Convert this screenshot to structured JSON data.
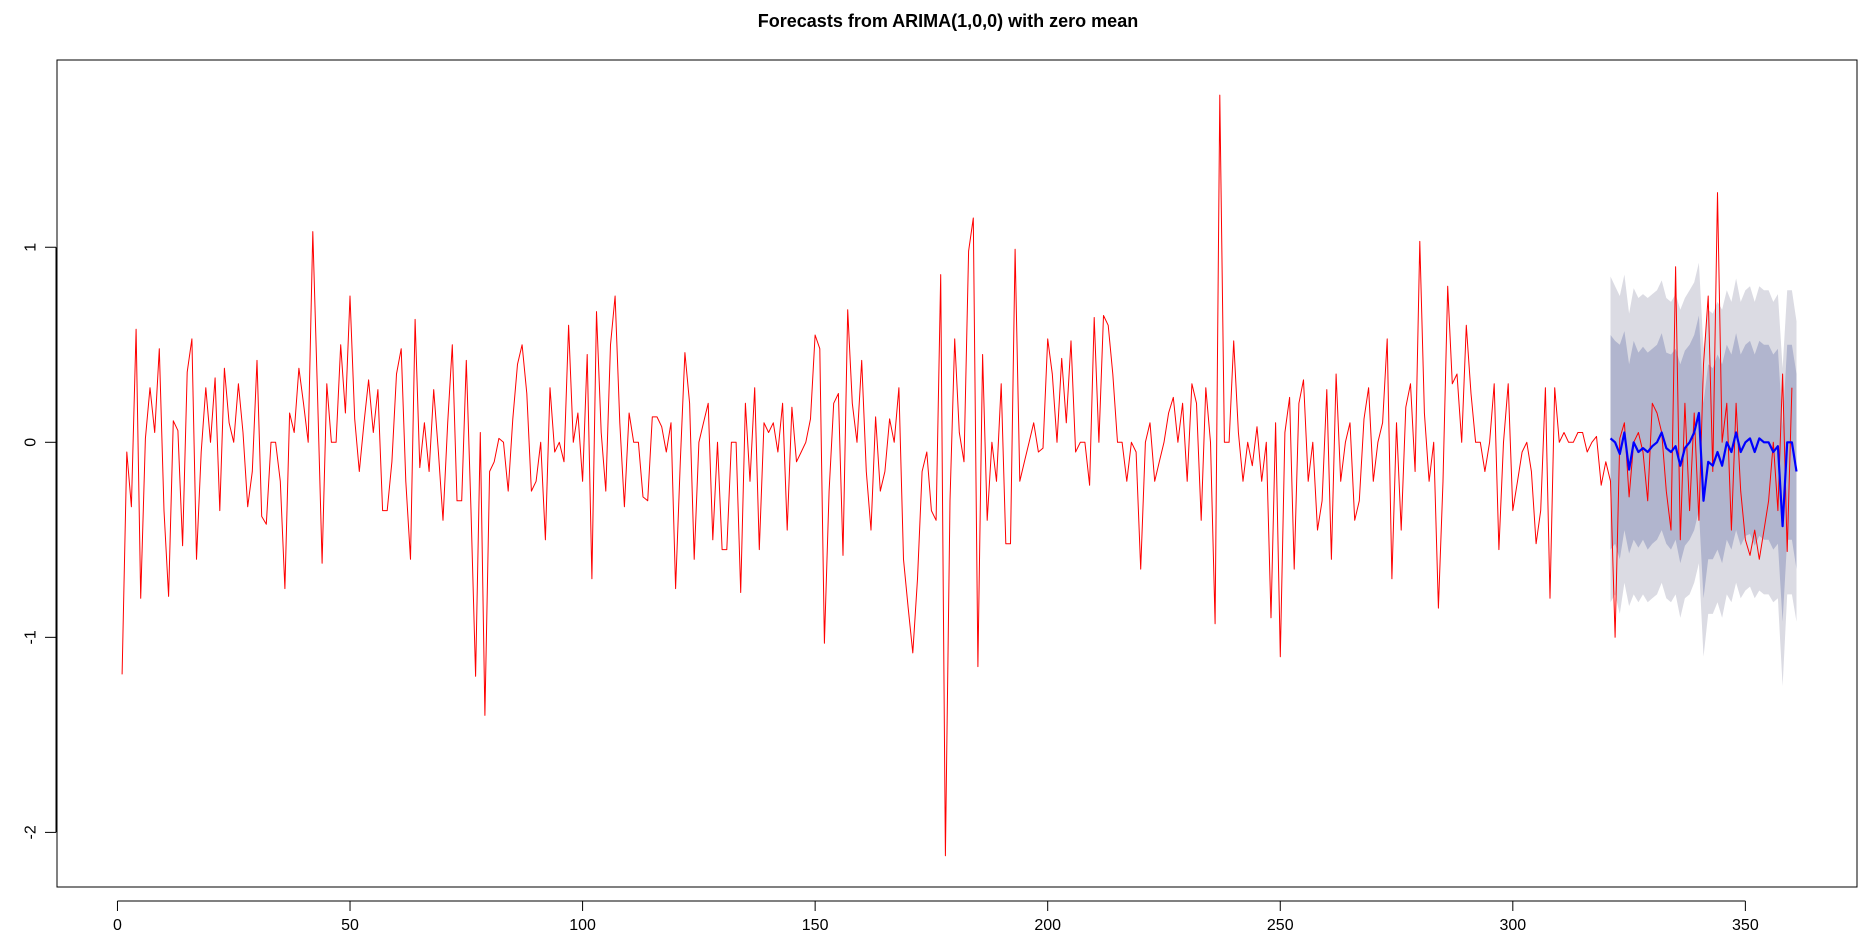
{
  "chart_data": {
    "type": "line",
    "title": "Forecasts from ARIMA(1,0,0) with zero mean",
    "xlabel": "",
    "ylabel": "",
    "xlim": [
      -13,
      374
    ],
    "ylim": [
      -2.28,
      1.96
    ],
    "x_ticks": [
      0,
      50,
      100,
      150,
      200,
      250,
      300,
      350
    ],
    "y_ticks": [
      -2,
      -1,
      0,
      1
    ],
    "grid": false,
    "legend": "none",
    "colors": {
      "series": "#ff0000",
      "forecast": "#0000ff",
      "band80": "#b1b5ce",
      "band95": "#dbdbe3"
    },
    "series": [
      {
        "name": "",
        "color": "#ff0000",
        "x_start": 1,
        "values": [
          -1.19,
          -0.05,
          -0.33,
          0.58,
          -0.8,
          0.02,
          0.28,
          0.05,
          0.48,
          -0.35,
          -0.79,
          0.11,
          0.06,
          -0.53,
          0.36,
          0.53,
          -0.6,
          -0.05,
          0.28,
          0.0,
          0.33,
          -0.35,
          0.38,
          0.1,
          0.0,
          0.3,
          0.05,
          -0.33,
          -0.15,
          0.42,
          -0.38,
          -0.42,
          0.0,
          0.0,
          -0.2,
          -0.75,
          0.15,
          0.05,
          0.38,
          0.2,
          0.0,
          1.08,
          0.25,
          -0.62,
          0.3,
          0.0,
          0.0,
          0.5,
          0.15,
          0.75,
          0.12,
          -0.15,
          0.1,
          0.32,
          0.05,
          0.27,
          -0.35,
          -0.35,
          -0.1,
          0.35,
          0.48,
          -0.2,
          -0.6,
          0.63,
          -0.13,
          0.1,
          -0.15,
          0.27,
          -0.05,
          -0.4,
          0.1,
          0.5,
          -0.3,
          -0.3,
          0.42,
          -0.35,
          -1.2,
          0.05,
          -1.4,
          -0.15,
          -0.1,
          0.02,
          0.0,
          -0.25,
          0.12,
          0.4,
          0.5,
          0.25,
          -0.25,
          -0.2,
          0.0,
          -0.5,
          0.28,
          -0.05,
          0.0,
          -0.1,
          0.6,
          0.0,
          0.15,
          -0.2,
          0.45,
          -0.7,
          0.67,
          0.05,
          -0.25,
          0.5,
          0.75,
          0.1,
          -0.33,
          0.15,
          0.0,
          0.0,
          -0.28,
          -0.3,
          0.13,
          0.13,
          0.08,
          -0.05,
          0.1,
          -0.75,
          -0.1,
          0.46,
          0.2,
          -0.6,
          0.0,
          0.1,
          0.2,
          -0.5,
          0.0,
          -0.55,
          -0.55,
          0.0,
          0.0,
          -0.77,
          0.2,
          -0.2,
          0.28,
          -0.55,
          0.1,
          0.05,
          0.1,
          -0.05,
          0.2,
          -0.45,
          0.18,
          -0.1,
          -0.05,
          0.0,
          0.12,
          0.55,
          0.48,
          -1.03,
          -0.25,
          0.2,
          0.25,
          -0.58,
          0.68,
          0.2,
          0.0,
          0.42,
          -0.15,
          -0.45,
          0.13,
          -0.25,
          -0.15,
          0.12,
          0.0,
          0.28,
          -0.6,
          -0.85,
          -1.08,
          -0.7,
          -0.15,
          -0.05,
          -0.35,
          -0.4,
          0.86,
          -2.12,
          -0.3,
          0.53,
          0.05,
          -0.1,
          0.98,
          1.15,
          -1.15,
          0.45,
          -0.4,
          0.0,
          -0.2,
          0.3,
          -0.52,
          -0.52,
          0.99,
          -0.2,
          -0.1,
          0.0,
          0.1,
          -0.05,
          -0.03,
          0.53,
          0.35,
          0.0,
          0.43,
          0.1,
          0.52,
          -0.05,
          0.0,
          0.0,
          -0.22,
          0.64,
          0.0,
          0.65,
          0.6,
          0.35,
          0.0,
          0.0,
          -0.2,
          0.0,
          -0.05,
          -0.65,
          0.0,
          0.1,
          -0.2,
          -0.1,
          0.0,
          0.15,
          0.23,
          0.0,
          0.2,
          -0.2,
          0.3,
          0.2,
          -0.4,
          0.28,
          0.0,
          -0.93,
          1.78,
          0.0,
          0.0,
          0.52,
          0.05,
          -0.2,
          0.0,
          -0.12,
          0.08,
          -0.2,
          0.0,
          -0.9,
          0.1,
          -1.1,
          0.05,
          0.23,
          -0.65,
          0.2,
          0.32,
          -0.2,
          0.0,
          -0.45,
          -0.3,
          0.27,
          -0.6,
          0.35,
          -0.2,
          0.0,
          0.1,
          -0.4,
          -0.3,
          0.12,
          0.28,
          -0.2,
          0.0,
          0.1,
          0.53,
          -0.7,
          0.1,
          -0.45,
          0.18,
          0.3,
          -0.15,
          1.03,
          0.15,
          -0.2,
          0.0,
          -0.85,
          -0.2,
          0.8,
          0.3,
          0.35,
          0.0,
          0.6,
          0.25,
          0.0,
          0.0,
          -0.15,
          0.0,
          0.3,
          -0.55,
          0.0,
          0.3,
          -0.35,
          -0.2,
          -0.05,
          0.0,
          -0.15,
          -0.52,
          -0.35,
          0.28,
          -0.8,
          0.28,
          0.0,
          0.05,
          0.0,
          0.0,
          0.05,
          0.05,
          -0.05,
          0.0,
          0.03,
          -0.22,
          -0.1,
          -0.2,
          -1.0,
          0.02,
          0.1,
          -0.28,
          0.0,
          0.05,
          -0.05,
          -0.3,
          0.2,
          0.15,
          0.05,
          -0.25,
          -0.45,
          0.9,
          -0.5,
          0.2,
          -0.35,
          0.15,
          -0.4,
          0.4,
          0.75,
          -0.15,
          1.28,
          0.0,
          0.2,
          -0.45,
          0.2,
          -0.25,
          -0.5,
          -0.58,
          -0.45,
          -0.6,
          -0.45,
          -0.3,
          0.0,
          -0.35,
          0.35,
          -0.56,
          0.28
        ]
      },
      {
        "name": "",
        "color": "#0000ff",
        "x_start": 321,
        "values": [
          0.02,
          0.0,
          -0.06,
          0.05,
          -0.14,
          0.0,
          -0.05,
          -0.03,
          -0.05,
          -0.02,
          0.0,
          0.05,
          -0.03,
          -0.05,
          -0.02,
          -0.12,
          -0.03,
          0.0,
          0.05,
          0.15,
          -0.3,
          -0.1,
          -0.12,
          -0.05,
          -0.12,
          0.0,
          -0.05,
          0.05,
          -0.05,
          0.0,
          0.02,
          -0.05,
          0.02,
          0.0,
          0.0,
          -0.05,
          -0.02,
          -0.43,
          0.0,
          0.0,
          -0.15
        ]
      }
    ],
    "bands": {
      "x_start": 321,
      "lower80": [
        -0.55,
        -0.52,
        -0.6,
        -0.45,
        -0.57,
        -0.5,
        -0.54,
        -0.5,
        -0.55,
        -0.52,
        -0.5,
        -0.45,
        -0.52,
        -0.55,
        -0.5,
        -0.62,
        -0.53,
        -0.5,
        -0.45,
        -0.35,
        -0.8,
        -0.6,
        -0.6,
        -0.55,
        -0.62,
        -0.5,
        -0.55,
        -0.45,
        -0.53,
        -0.48,
        -0.47,
        -0.53,
        -0.48,
        -0.5,
        -0.5,
        -0.55,
        -0.52,
        -0.92,
        -0.5,
        -0.5,
        -0.65
      ],
      "upper80": [
        0.55,
        0.52,
        0.5,
        0.57,
        0.4,
        0.52,
        0.46,
        0.49,
        0.46,
        0.48,
        0.5,
        0.56,
        0.46,
        0.45,
        0.48,
        0.4,
        0.47,
        0.5,
        0.55,
        0.65,
        0.2,
        0.4,
        0.38,
        0.45,
        0.4,
        0.5,
        0.45,
        0.56,
        0.45,
        0.5,
        0.52,
        0.45,
        0.52,
        0.5,
        0.5,
        0.45,
        0.48,
        0.08,
        0.5,
        0.5,
        0.35
      ],
      "lower95": [
        -0.82,
        -0.78,
        -0.88,
        -0.72,
        -0.84,
        -0.78,
        -0.82,
        -0.78,
        -0.82,
        -0.8,
        -0.78,
        -0.72,
        -0.8,
        -0.82,
        -0.78,
        -0.9,
        -0.8,
        -0.78,
        -0.72,
        -0.62,
        -1.1,
        -0.88,
        -0.88,
        -0.82,
        -0.9,
        -0.78,
        -0.82,
        -0.72,
        -0.8,
        -0.76,
        -0.74,
        -0.8,
        -0.76,
        -0.78,
        -0.78,
        -0.82,
        -0.8,
        -1.25,
        -0.78,
        -0.78,
        -0.92
      ],
      "upper95": [
        0.85,
        0.8,
        0.75,
        0.86,
        0.66,
        0.79,
        0.74,
        0.76,
        0.74,
        0.76,
        0.78,
        0.83,
        0.74,
        0.72,
        0.76,
        0.68,
        0.74,
        0.78,
        0.82,
        0.92,
        0.48,
        0.68,
        0.66,
        0.72,
        0.68,
        0.78,
        0.72,
        0.84,
        0.72,
        0.78,
        0.8,
        0.72,
        0.8,
        0.78,
        0.78,
        0.72,
        0.76,
        0.38,
        0.78,
        0.78,
        0.62
      ]
    }
  }
}
